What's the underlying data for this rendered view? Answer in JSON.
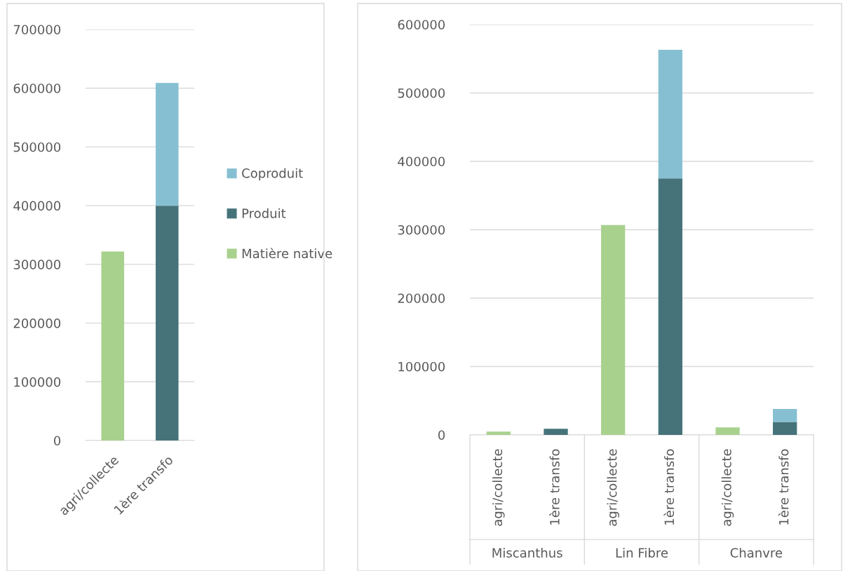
{
  "chart_data": [
    {
      "type": "bar",
      "stacked": true,
      "categories": [
        "agri/collecte",
        "1ère transfo"
      ],
      "series": [
        {
          "name": "Matière native",
          "color": "#a9d18e",
          "values": [
            322000,
            0
          ]
        },
        {
          "name": "Produit",
          "color": "#46737a",
          "values": [
            0,
            400000
          ]
        },
        {
          "name": "Coproduit",
          "color": "#86bfd2",
          "values": [
            0,
            209000
          ]
        }
      ],
      "ylim": [
        0,
        700000
      ],
      "yticks": [
        0,
        100000,
        200000,
        300000,
        400000,
        500000,
        600000,
        700000
      ],
      "grid": "y",
      "legend": "right"
    },
    {
      "type": "bar",
      "stacked": true,
      "categories": [
        "agri/collecte",
        "1ère transfo",
        "agri/collecte",
        "1ère transfo",
        "agri/collecte",
        "1ère transfo"
      ],
      "series": [
        {
          "color": "#a9d18e",
          "values": [
            5000,
            0,
            307000,
            0,
            11000,
            0
          ]
        },
        {
          "color": "#46737a",
          "values": [
            0,
            9000,
            0,
            375000,
            0,
            19000
          ]
        },
        {
          "color": "#86bfd2",
          "values": [
            0,
            0,
            0,
            188000,
            0,
            19000
          ]
        }
      ],
      "annotations": [
        "Miscanthus",
        "Lin Fibre",
        "Chanvre"
      ],
      "ylim": [
        0,
        600000
      ],
      "yticks": [
        0,
        100000,
        200000,
        300000,
        400000,
        500000,
        600000
      ],
      "grid": "y"
    }
  ]
}
